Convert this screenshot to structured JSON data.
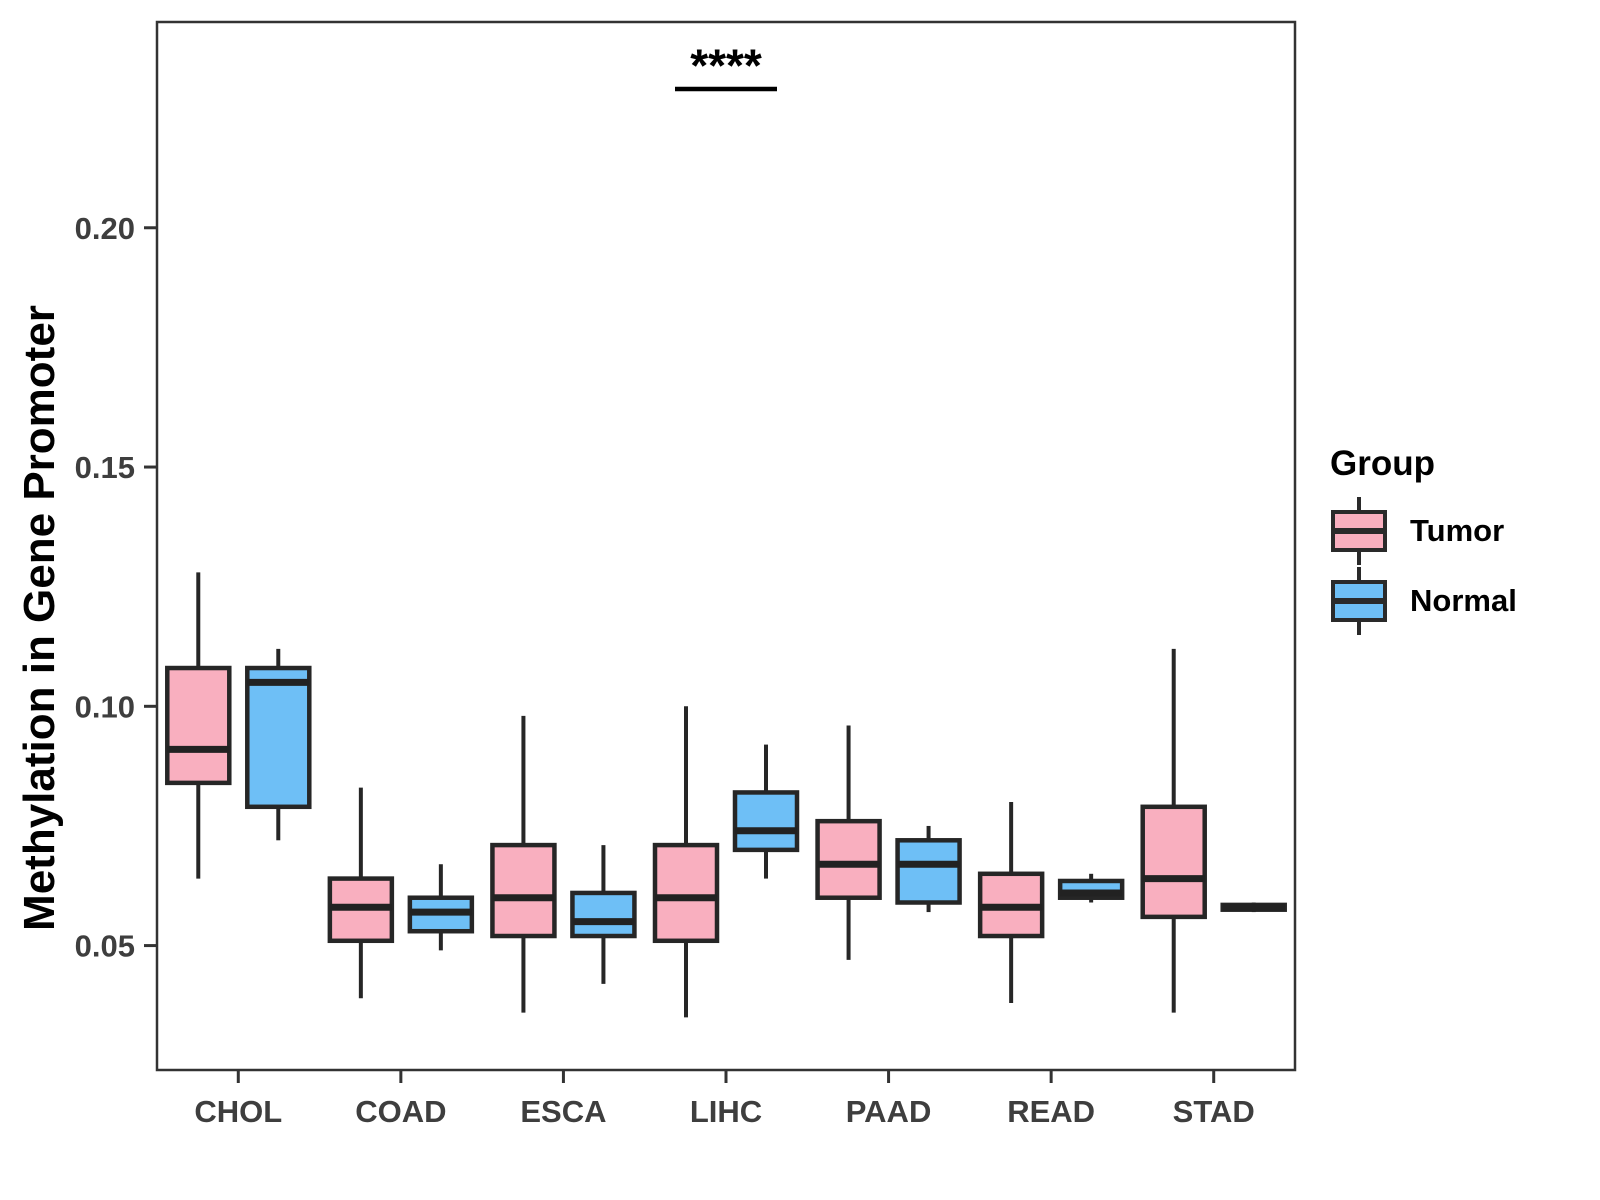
{
  "legend": {
    "title": "Group",
    "items": [
      {
        "label": "Tumor",
        "color": "#F9AFBF"
      },
      {
        "label": "Normal",
        "color": "#6EBFF6"
      }
    ]
  },
  "chart_data": {
    "type": "boxplot",
    "title": "",
    "xlabel": "",
    "ylabel": "Methylation in Gene Promoter",
    "categories": [
      "CHOL",
      "COAD",
      "ESCA",
      "LIHC",
      "PAAD",
      "READ",
      "STAD"
    ],
    "groups": [
      "Tumor",
      "Normal"
    ],
    "colors": {
      "Tumor": "#F9AFBF",
      "Normal": "#6EBFF6",
      "stroke": "#262626"
    },
    "ylim": [
      0.024,
      0.243
    ],
    "yticks": [
      0.05,
      0.1,
      0.15,
      0.2
    ],
    "ytick_labels": [
      "0.05",
      "0.10",
      "0.15",
      "0.20"
    ],
    "grid": false,
    "legend_position": "right",
    "series": [
      {
        "name": "Tumor",
        "boxes": [
          {
            "category": "CHOL",
            "whisker_low": 0.064,
            "q1": 0.084,
            "median": 0.091,
            "q3": 0.108,
            "whisker_high": 0.128
          },
          {
            "category": "COAD",
            "whisker_low": 0.039,
            "q1": 0.051,
            "median": 0.058,
            "q3": 0.064,
            "whisker_high": 0.083
          },
          {
            "category": "ESCA",
            "whisker_low": 0.036,
            "q1": 0.052,
            "median": 0.06,
            "q3": 0.071,
            "whisker_high": 0.098
          },
          {
            "category": "LIHC",
            "whisker_low": 0.035,
            "q1": 0.051,
            "median": 0.06,
            "q3": 0.071,
            "whisker_high": 0.1
          },
          {
            "category": "PAAD",
            "whisker_low": 0.047,
            "q1": 0.06,
            "median": 0.067,
            "q3": 0.076,
            "whisker_high": 0.096
          },
          {
            "category": "READ",
            "whisker_low": 0.038,
            "q1": 0.052,
            "median": 0.058,
            "q3": 0.065,
            "whisker_high": 0.08
          },
          {
            "category": "STAD",
            "whisker_low": 0.036,
            "q1": 0.056,
            "median": 0.064,
            "q3": 0.079,
            "whisker_high": 0.112
          }
        ]
      },
      {
        "name": "Normal",
        "boxes": [
          {
            "category": "CHOL",
            "whisker_low": 0.072,
            "q1": 0.079,
            "median": 0.105,
            "q3": 0.108,
            "whisker_high": 0.112
          },
          {
            "category": "COAD",
            "whisker_low": 0.049,
            "q1": 0.053,
            "median": 0.057,
            "q3": 0.06,
            "whisker_high": 0.067
          },
          {
            "category": "ESCA",
            "whisker_low": 0.042,
            "q1": 0.052,
            "median": 0.055,
            "q3": 0.061,
            "whisker_high": 0.071
          },
          {
            "category": "LIHC",
            "whisker_low": 0.064,
            "q1": 0.07,
            "median": 0.074,
            "q3": 0.082,
            "whisker_high": 0.092
          },
          {
            "category": "PAAD",
            "whisker_low": 0.057,
            "q1": 0.059,
            "median": 0.067,
            "q3": 0.072,
            "whisker_high": 0.075
          },
          {
            "category": "READ",
            "whisker_low": 0.059,
            "q1": 0.06,
            "median": 0.061,
            "q3": 0.0635,
            "whisker_high": 0.065
          },
          {
            "category": "STAD",
            "whisker_low": 0.057,
            "q1": 0.0575,
            "median": 0.058,
            "q3": 0.0585,
            "whisker_high": 0.059
          }
        ]
      }
    ],
    "significance": {
      "label": "****",
      "category": "LIHC",
      "line_y": 0.229,
      "text_y": 0.2335
    }
  }
}
